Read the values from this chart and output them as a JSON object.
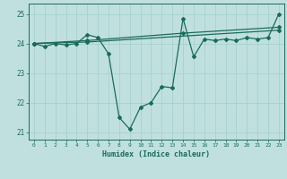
{
  "xlabel": "Humidex (Indice chaleur)",
  "bg_color": "#c0e0e0",
  "grid_color": "#a8d0d0",
  "line_color": "#1a6b5a",
  "xlim": [
    -0.5,
    23.5
  ],
  "ylim": [
    20.75,
    25.35
  ],
  "yticks": [
    21,
    22,
    23,
    24,
    25
  ],
  "xticks": [
    0,
    1,
    2,
    3,
    4,
    5,
    6,
    7,
    8,
    9,
    10,
    11,
    12,
    13,
    14,
    15,
    16,
    17,
    18,
    19,
    20,
    21,
    22,
    23
  ],
  "line1_x": [
    0,
    1,
    2,
    3,
    4,
    5,
    6,
    7,
    8,
    9,
    10,
    11,
    12,
    13,
    14,
    15,
    16,
    17,
    18,
    19,
    20,
    21,
    22,
    23
  ],
  "line1_y": [
    24.0,
    23.9,
    24.0,
    23.95,
    24.0,
    24.3,
    24.2,
    23.65,
    21.5,
    21.1,
    21.85,
    22.0,
    22.55,
    22.5,
    24.85,
    23.55,
    24.15,
    24.1,
    24.15,
    24.1,
    24.2,
    24.15,
    24.2,
    25.0
  ],
  "line2_x": [
    0,
    5,
    23
  ],
  "line2_y": [
    24.0,
    24.05,
    24.45
  ],
  "line3_x": [
    0,
    5,
    14,
    23
  ],
  "line3_y": [
    24.0,
    24.1,
    24.35,
    24.55
  ]
}
